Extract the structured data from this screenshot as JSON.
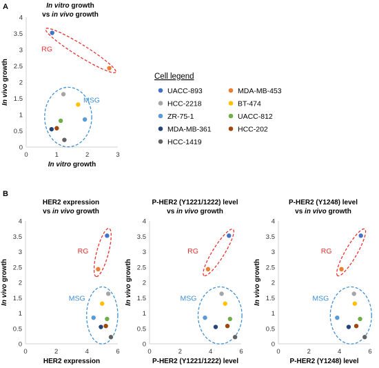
{
  "panel_labels": [
    "A",
    "B"
  ],
  "legend": {
    "title": "Cell legend",
    "items": [
      {
        "name": "UACC-893",
        "color": "#4472C4"
      },
      {
        "name": "MDA-MB-453",
        "color": "#ED7D31"
      },
      {
        "name": "HCC-2218",
        "color": "#A5A5A5"
      },
      {
        "name": "BT-474",
        "color": "#FFC000"
      },
      {
        "name": "ZR-75-1",
        "color": "#5B9BD5"
      },
      {
        "name": "UACC-812",
        "color": "#70AD47"
      },
      {
        "name": "MDA-MB-361",
        "color": "#264478"
      },
      {
        "name": "HCC-202",
        "color": "#9E480E"
      },
      {
        "name": "HCC-1419",
        "color": "#636363"
      }
    ]
  },
  "groups": {
    "rg": {
      "label": "RG",
      "color": "#E8302F"
    },
    "msg": {
      "label": "MSG",
      "color": "#3F8FD2"
    }
  },
  "chart_data": [
    {
      "type": "scatter",
      "title_italic": "In vitro",
      "title_rest": " growth",
      "subtitle_pre": "vs ",
      "subtitle_italic": "in vivo",
      "subtitle_post": " growth",
      "xlabel_italic": "In vitro",
      "xlabel_rest": " growth",
      "ylabel_italic": "In vivo",
      "ylabel_rest": " growth",
      "xlim": [
        0,
        3
      ],
      "ylim": [
        0,
        4
      ],
      "xticks": [
        "0",
        "1",
        "2",
        "3"
      ],
      "yticks": [
        "0",
        "0.5",
        "1",
        "1.5",
        "2",
        "2.5",
        "3",
        "3.5",
        "4"
      ],
      "points": [
        {
          "cell": "UACC-893",
          "x": 0.85,
          "y": 3.52
        },
        {
          "cell": "MDA-MB-453",
          "x": 2.72,
          "y": 2.43
        },
        {
          "cell": "HCC-2218",
          "x": 1.22,
          "y": 1.63
        },
        {
          "cell": "BT-474",
          "x": 1.7,
          "y": 1.31
        },
        {
          "cell": "ZR-75-1",
          "x": 1.92,
          "y": 0.85
        },
        {
          "cell": "UACC-812",
          "x": 1.13,
          "y": 0.81
        },
        {
          "cell": "MDA-MB-361",
          "x": 0.83,
          "y": 0.55
        },
        {
          "cell": "HCC-202",
          "x": 1.0,
          "y": 0.58
        },
        {
          "cell": "HCC-1419",
          "x": 1.25,
          "y": 0.22
        }
      ]
    },
    {
      "type": "scatter",
      "title": "HER2 expression",
      "subtitle_pre": "vs ",
      "subtitle_italic": "in vivo",
      "subtitle_post": " growth",
      "xlabel": "HER2 expression",
      "ylabel_italic": "In vivo",
      "ylabel_rest": " growth",
      "xlim": [
        0,
        6
      ],
      "ylim": [
        0,
        4
      ],
      "xticks": [
        "0",
        "2",
        "4",
        "6"
      ],
      "yticks": [
        "0",
        "0.5",
        "1",
        "1.5",
        "2",
        "2.5",
        "3",
        "3.5",
        "4"
      ],
      "points": [
        {
          "cell": "UACC-893",
          "x": 5.3,
          "y": 3.52
        },
        {
          "cell": "MDA-MB-453",
          "x": 4.72,
          "y": 2.43
        },
        {
          "cell": "HCC-2218",
          "x": 5.38,
          "y": 1.63
        },
        {
          "cell": "BT-474",
          "x": 4.98,
          "y": 1.31
        },
        {
          "cell": "ZR-75-1",
          "x": 4.42,
          "y": 0.85
        },
        {
          "cell": "UACC-812",
          "x": 5.3,
          "y": 0.81
        },
        {
          "cell": "MDA-MB-361",
          "x": 4.9,
          "y": 0.55
        },
        {
          "cell": "HCC-202",
          "x": 5.22,
          "y": 0.58
        },
        {
          "cell": "HCC-1419",
          "x": 5.55,
          "y": 0.22
        }
      ]
    },
    {
      "type": "scatter",
      "title": "P-HER2 (Y1221/1222) level",
      "subtitle_pre": "vs ",
      "subtitle_italic": "in vivo",
      "subtitle_post": " growth",
      "xlabel": "P-HER2 (Y1221/1222) level",
      "ylabel_italic": "In vivo",
      "ylabel_rest": " growth",
      "xlim": [
        0,
        6
      ],
      "ylim": [
        0,
        4
      ],
      "xticks": [
        "0",
        "2",
        "4",
        "6"
      ],
      "yticks": [
        "0",
        "0.5",
        "1",
        "1.5",
        "2",
        "2.5",
        "3",
        "3.5",
        "4"
      ],
      "points": [
        {
          "cell": "UACC-893",
          "x": 5.2,
          "y": 3.52
        },
        {
          "cell": "MDA-MB-453",
          "x": 3.83,
          "y": 2.43
        },
        {
          "cell": "HCC-2218",
          "x": 4.72,
          "y": 1.63
        },
        {
          "cell": "BT-474",
          "x": 4.95,
          "y": 1.31
        },
        {
          "cell": "ZR-75-1",
          "x": 3.63,
          "y": 0.85
        },
        {
          "cell": "UACC-812",
          "x": 5.27,
          "y": 0.81
        },
        {
          "cell": "MDA-MB-361",
          "x": 4.33,
          "y": 0.55
        },
        {
          "cell": "HCC-202",
          "x": 5.1,
          "y": 0.58
        },
        {
          "cell": "HCC-1419",
          "x": 5.6,
          "y": 0.22
        }
      ]
    },
    {
      "type": "scatter",
      "title": "P-HER2 (Y1248) level",
      "subtitle_pre": "vs ",
      "subtitle_italic": "in vivo",
      "subtitle_post": " growth",
      "xlabel": "P-HER2 (Y1248) level",
      "ylabel_italic": "In vivo",
      "ylabel_rest": " growth",
      "xlim": [
        0,
        6
      ],
      "ylim": [
        0,
        4
      ],
      "xticks": [
        "0",
        "2",
        "4",
        "6"
      ],
      "yticks": [
        "0",
        "0.5",
        "1",
        "1.5",
        "2",
        "2.5",
        "3",
        "3.5",
        "4"
      ],
      "points": [
        {
          "cell": "UACC-893",
          "x": 5.4,
          "y": 3.52
        },
        {
          "cell": "MDA-MB-453",
          "x": 4.13,
          "y": 2.43
        },
        {
          "cell": "HCC-2218",
          "x": 4.95,
          "y": 1.63
        },
        {
          "cell": "BT-474",
          "x": 5.0,
          "y": 1.31
        },
        {
          "cell": "ZR-75-1",
          "x": 3.85,
          "y": 0.85
        },
        {
          "cell": "UACC-812",
          "x": 5.35,
          "y": 0.81
        },
        {
          "cell": "MDA-MB-361",
          "x": 4.6,
          "y": 0.55
        },
        {
          "cell": "HCC-202",
          "x": 5.1,
          "y": 0.58
        },
        {
          "cell": "HCC-1419",
          "x": 5.65,
          "y": 0.22
        }
      ]
    }
  ]
}
